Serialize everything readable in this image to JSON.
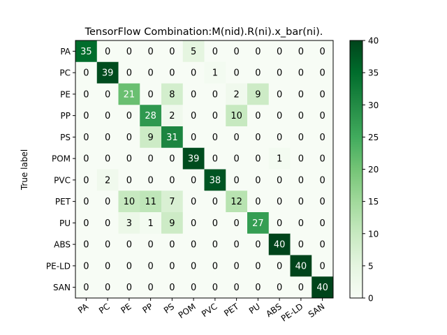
{
  "chart_data": {
    "type": "heatmap",
    "title": "TensorFlow Combination:M(nid).R(ni).x_bar(ni).",
    "ylabel": "True label",
    "xlabel": "",
    "row_labels": [
      "PA",
      "PC",
      "PE",
      "PP",
      "PS",
      "POM",
      "PVC",
      "PET",
      "PU",
      "ABS",
      "PE-LD",
      "SAN"
    ],
    "col_labels": [
      "PA",
      "PC",
      "PE",
      "PP",
      "PS",
      "POM",
      "PVC",
      "PET",
      "PU",
      "ABS",
      "PE-LD",
      "SAN"
    ],
    "matrix": [
      [
        35,
        0,
        0,
        0,
        0,
        5,
        0,
        0,
        0,
        0,
        0,
        0
      ],
      [
        0,
        39,
        0,
        0,
        0,
        0,
        1,
        0,
        0,
        0,
        0,
        0
      ],
      [
        0,
        0,
        21,
        0,
        8,
        0,
        0,
        2,
        9,
        0,
        0,
        0
      ],
      [
        0,
        0,
        0,
        28,
        2,
        0,
        0,
        10,
        0,
        0,
        0,
        0
      ],
      [
        0,
        0,
        0,
        9,
        31,
        0,
        0,
        0,
        0,
        0,
        0,
        0
      ],
      [
        0,
        0,
        0,
        0,
        0,
        39,
        0,
        0,
        0,
        1,
        0,
        0
      ],
      [
        0,
        2,
        0,
        0,
        0,
        0,
        38,
        0,
        0,
        0,
        0,
        0
      ],
      [
        0,
        0,
        10,
        11,
        7,
        0,
        0,
        12,
        0,
        0,
        0,
        0
      ],
      [
        0,
        0,
        3,
        1,
        9,
        0,
        0,
        0,
        27,
        0,
        0,
        0
      ],
      [
        0,
        0,
        0,
        0,
        0,
        0,
        0,
        0,
        0,
        40,
        0,
        0
      ],
      [
        0,
        0,
        0,
        0,
        0,
        0,
        0,
        0,
        0,
        0,
        40,
        0
      ],
      [
        0,
        0,
        0,
        0,
        0,
        0,
        0,
        0,
        0,
        0,
        0,
        40
      ]
    ],
    "vmin": 0,
    "vmax": 40,
    "colorbar_ticks": [
      0,
      5,
      10,
      15,
      20,
      25,
      30,
      35,
      40
    ],
    "colormap": "Greens",
    "colormap_low": "#f7fcf5",
    "colormap_high": "#00441b"
  }
}
